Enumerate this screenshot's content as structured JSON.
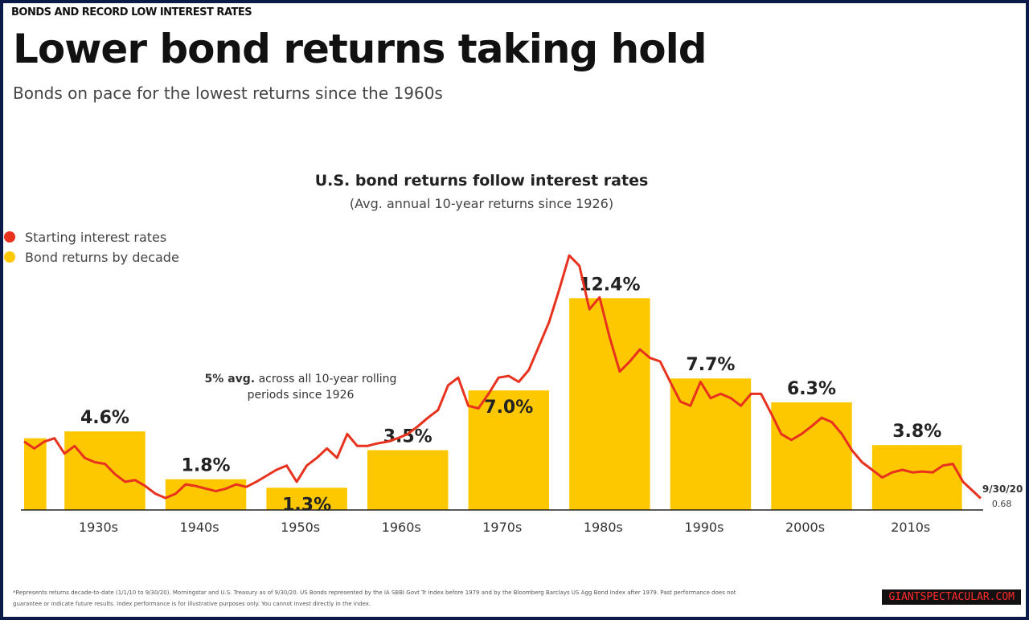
{
  "kicker": "BONDS AND RECORD LOW INTEREST RATES",
  "title": "Lower bond returns taking hold",
  "subtitle": "Bonds on pace for the lowest returns since the 1960s",
  "chart_data": {
    "type": "bar-line",
    "title": "U.S. bond returns follow interest rates",
    "subtitle": "(Avg. annual 10-year returns since 1926)",
    "categories": [
      null,
      "1930s",
      "1940s",
      "1950s",
      "1960s",
      "1970s",
      "1980s",
      "1990s",
      "2000s",
      "2010s"
    ],
    "bars": {
      "name": "Bond returns by decade",
      "color": "#fdc800",
      "values": [
        4.2,
        4.6,
        1.8,
        1.3,
        3.5,
        7.0,
        12.4,
        7.7,
        6.3,
        3.8
      ],
      "value_labels": [
        null,
        "4.6%",
        "1.8%",
        "1.3%",
        "3.5%",
        "7.0%",
        "12.4%",
        "7.7%",
        "6.3%",
        "3.8%"
      ]
    },
    "line": {
      "name": "Starting interest rates",
      "color": "#e8321e",
      "x": [
        1926,
        1927,
        1928,
        1929,
        1930,
        1931,
        1932,
        1933,
        1934,
        1935,
        1936,
        1937,
        1938,
        1939,
        1940,
        1941,
        1942,
        1943,
        1944,
        1945,
        1946,
        1947,
        1948,
        1949,
        1950,
        1951,
        1952,
        1953,
        1954,
        1955,
        1956,
        1957,
        1958,
        1959,
        1960,
        1961,
        1962,
        1963,
        1964,
        1965,
        1966,
        1967,
        1968,
        1969,
        1970,
        1971,
        1972,
        1973,
        1974,
        1975,
        1976,
        1977,
        1978,
        1979,
        1980,
        1981,
        1982,
        1983,
        1984,
        1985,
        1986,
        1987,
        1988,
        1989,
        1990,
        1991,
        1992,
        1993,
        1994,
        1995,
        1996,
        1997,
        1998,
        1999,
        2000,
        2001,
        2002,
        2003,
        2004,
        2005,
        2006,
        2007,
        2008,
        2009,
        2010,
        2011,
        2012,
        2013,
        2014,
        2015,
        2016,
        2017,
        2018,
        2019,
        2020.75
      ],
      "values": [
        4.0,
        3.6,
        4.0,
        4.2,
        3.3,
        3.75,
        3.05,
        2.8,
        2.7,
        2.1,
        1.65,
        1.75,
        1.4,
        0.95,
        0.7,
        0.95,
        1.5,
        1.4,
        1.25,
        1.1,
        1.25,
        1.5,
        1.35,
        1.65,
        2.0,
        2.35,
        2.6,
        1.65,
        2.6,
        3.05,
        3.6,
        3.05,
        4.45,
        3.75,
        3.75,
        3.9,
        4.0,
        4.2,
        4.45,
        4.9,
        5.4,
        5.85,
        7.3,
        7.75,
        6.1,
        5.95,
        6.8,
        7.75,
        7.85,
        7.5,
        8.2,
        9.6,
        11.0,
        12.9,
        14.9,
        14.3,
        11.75,
        12.45,
        10.1,
        8.1,
        8.7,
        9.4,
        8.9,
        8.7,
        7.5,
        6.35,
        6.1,
        7.5,
        6.55,
        6.8,
        6.55,
        6.1,
        6.8,
        6.8,
        5.65,
        4.45,
        4.1,
        4.45,
        4.9,
        5.4,
        5.15,
        4.45,
        3.5,
        2.8,
        2.35,
        1.9,
        2.2,
        2.35,
        2.2,
        2.25,
        2.2,
        2.6,
        2.7,
        1.65,
        0.68
      ],
      "end_date": "9/30/20"
    },
    "xlim": [
      1926,
      2021
    ],
    "ylim": [
      0,
      15
    ],
    "annotation": {
      "bold": "5% avg.",
      "text": "across all 10-year rolling periods since 1926"
    }
  },
  "footnote": [
    "*Represents returns decade-to-date (1/1/10 to 9/30/20). Morningstar and U.S. Treasury as of 9/30/20. US Bonds represented by the IA SBBI Govt Tr Index before 1979 and by the Bloomberg Barclays US Agg Bond Index after 1979. Past performance does not",
    "guarantee or indicate future results. Index performance is for illustrative purposes only. You cannot invest directly in the index."
  ],
  "watermark": "GIANTSPECTACULAR.COM"
}
